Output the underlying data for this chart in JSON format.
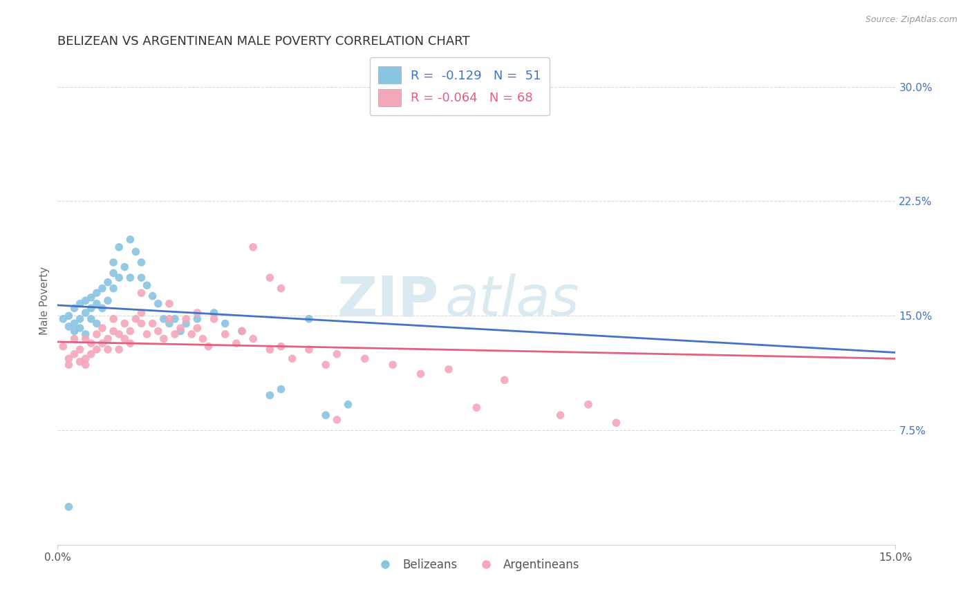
{
  "title": "BELIZEAN VS ARGENTINEAN MALE POVERTY CORRELATION CHART",
  "source": "Source: ZipAtlas.com",
  "ylabel": "Male Poverty",
  "xlim": [
    0.0,
    0.15
  ],
  "ylim": [
    0.0,
    0.32
  ],
  "ytick_labels": [
    "7.5%",
    "15.0%",
    "22.5%",
    "30.0%"
  ],
  "ytick_vals": [
    0.075,
    0.15,
    0.225,
    0.3
  ],
  "xtick_vals": [
    0.0,
    0.15
  ],
  "xtick_labels": [
    "0.0%",
    "15.0%"
  ],
  "blue_color": "#89c4e1",
  "pink_color": "#f4a7b9",
  "blue_line_color": "#4472c4",
  "pink_line_color": "#e0607e",
  "legend_blue_label": "R =  -0.129   N =  51",
  "legend_pink_label": "R = -0.064   N = 68",
  "belizean_legend": "Belizeans",
  "argentinean_legend": "Argentineans",
  "R_blue": -0.129,
  "N_blue": 51,
  "R_pink": -0.064,
  "N_pink": 68,
  "blue_x": [
    0.001,
    0.002,
    0.002,
    0.003,
    0.003,
    0.003,
    0.004,
    0.004,
    0.004,
    0.005,
    0.005,
    0.005,
    0.006,
    0.006,
    0.006,
    0.007,
    0.007,
    0.007,
    0.008,
    0.008,
    0.009,
    0.009,
    0.01,
    0.01,
    0.01,
    0.011,
    0.011,
    0.012,
    0.013,
    0.013,
    0.014,
    0.015,
    0.015,
    0.016,
    0.017,
    0.018,
    0.019,
    0.02,
    0.021,
    0.022,
    0.023,
    0.025,
    0.028,
    0.03,
    0.033,
    0.038,
    0.04,
    0.045,
    0.048,
    0.052,
    0.002
  ],
  "blue_y": [
    0.148,
    0.15,
    0.143,
    0.155,
    0.145,
    0.14,
    0.158,
    0.148,
    0.142,
    0.16,
    0.152,
    0.138,
    0.162,
    0.148,
    0.155,
    0.165,
    0.145,
    0.158,
    0.168,
    0.155,
    0.172,
    0.16,
    0.178,
    0.185,
    0.168,
    0.195,
    0.175,
    0.182,
    0.2,
    0.175,
    0.192,
    0.185,
    0.175,
    0.17,
    0.163,
    0.158,
    0.148,
    0.145,
    0.148,
    0.14,
    0.145,
    0.148,
    0.152,
    0.145,
    0.14,
    0.098,
    0.102,
    0.148,
    0.085,
    0.092,
    0.025
  ],
  "pink_x": [
    0.001,
    0.002,
    0.002,
    0.003,
    0.003,
    0.004,
    0.004,
    0.005,
    0.005,
    0.005,
    0.006,
    0.006,
    0.007,
    0.007,
    0.008,
    0.008,
    0.009,
    0.009,
    0.01,
    0.01,
    0.011,
    0.011,
    0.012,
    0.012,
    0.013,
    0.013,
    0.014,
    0.015,
    0.015,
    0.016,
    0.017,
    0.018,
    0.019,
    0.02,
    0.021,
    0.022,
    0.023,
    0.024,
    0.025,
    0.026,
    0.027,
    0.028,
    0.03,
    0.032,
    0.033,
    0.035,
    0.038,
    0.04,
    0.042,
    0.045,
    0.048,
    0.05,
    0.055,
    0.06,
    0.065,
    0.07,
    0.08,
    0.09,
    0.095,
    0.1,
    0.035,
    0.038,
    0.04,
    0.015,
    0.02,
    0.025,
    0.05,
    0.075
  ],
  "pink_y": [
    0.13,
    0.122,
    0.118,
    0.135,
    0.125,
    0.12,
    0.128,
    0.135,
    0.122,
    0.118,
    0.132,
    0.125,
    0.138,
    0.128,
    0.132,
    0.142,
    0.135,
    0.128,
    0.14,
    0.148,
    0.138,
    0.128,
    0.145,
    0.135,
    0.14,
    0.132,
    0.148,
    0.152,
    0.145,
    0.138,
    0.145,
    0.14,
    0.135,
    0.148,
    0.138,
    0.142,
    0.148,
    0.138,
    0.142,
    0.135,
    0.13,
    0.148,
    0.138,
    0.132,
    0.14,
    0.135,
    0.128,
    0.13,
    0.122,
    0.128,
    0.118,
    0.125,
    0.122,
    0.118,
    0.112,
    0.115,
    0.108,
    0.085,
    0.092,
    0.08,
    0.195,
    0.175,
    0.168,
    0.165,
    0.158,
    0.152,
    0.082,
    0.09
  ],
  "watermark_left": "ZIP",
  "watermark_right": "atlas",
  "background_color": "#ffffff",
  "grid_color": "#d0d0d0",
  "title_color": "#222222",
  "axis_label_color": "#666666"
}
